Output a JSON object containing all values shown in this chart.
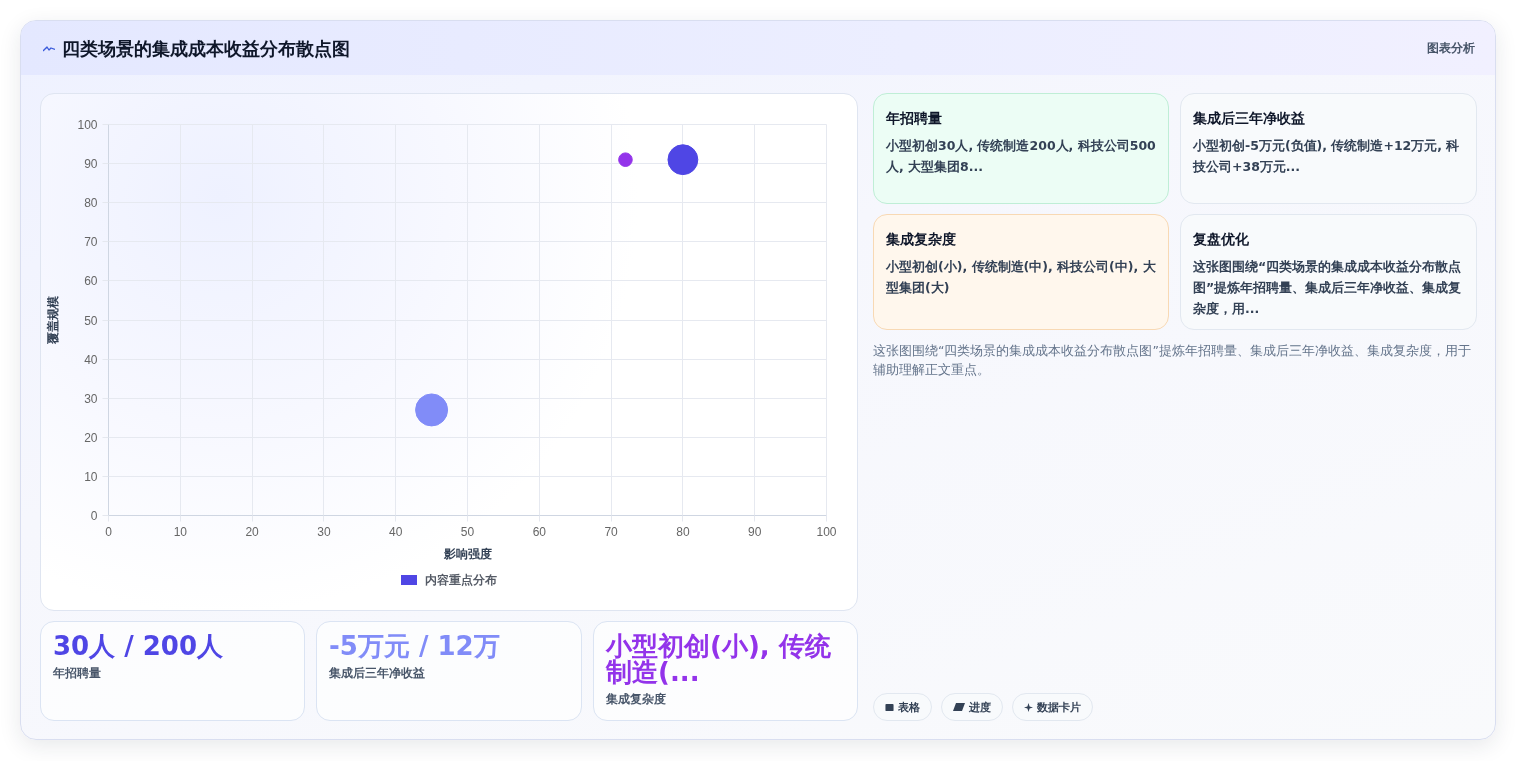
{
  "chart_data": [
    {
      "type": "bubble",
      "title": "四类场景的集成成本收益分布散点图",
      "xlabel": "影响强度",
      "ylabel": "覆盖规模",
      "annotations": [
        "图表分析"
      ],
      "x": [
        80,
        45,
        72
      ],
      "series": [
        {
          "name": "内容重点分布",
          "color": "#4f46e5",
          "colors": [
            "#4f46e5",
            "#818cf8",
            "#9333ea"
          ],
          "values": [
            91,
            27,
            91
          ],
          "sizes": [
            0.87,
            1,
            0.18
          ]
        }
      ],
      "xlim": [
        0,
        100
      ],
      "ylim": [
        0,
        100
      ],
      "xticks": [
        0,
        10,
        20,
        30,
        40,
        50,
        60,
        70,
        80,
        90,
        100
      ],
      "yticks": [
        0,
        10,
        20,
        30,
        40,
        50,
        60,
        70,
        80,
        90,
        100
      ],
      "grid": true,
      "legend": "bottom"
    },
    {
      "type": "other",
      "title": "30人 / 200人",
      "subtitle": "年招聘量"
    },
    {
      "type": "other",
      "title": "-5万元 / 12万",
      "subtitle": "集成后三年净收益"
    },
    {
      "type": "other",
      "title": "小型初创(小), 传统制造(...",
      "subtitle": "集成复杂度"
    },
    {
      "type": "other",
      "title": "年招聘量",
      "annotations": [
        "小型初创30人, 传统制造200人, 科技公司500人, 大型集团8..."
      ]
    },
    {
      "type": "other",
      "title": "集成后三年净收益",
      "annotations": [
        "小型初创-5万元(负值), 传统制造+12万元, 科技公司+38万元..."
      ]
    },
    {
      "type": "other",
      "title": "集成复杂度",
      "annotations": [
        "小型初创(小), 传统制造(中), 科技公司(中), 大型集团(大)"
      ]
    },
    {
      "type": "other",
      "title": "复盘优化",
      "annotations": [
        "这张图围绕“四类场景的集成成本收益分布散点图”提炼年招聘量、集成后三年净收益、集成复杂度，用..."
      ]
    },
    {
      "type": "other",
      "annotations": [
        "这张图围绕“四类场景的集成成本收益分布散点图”提炼年招聘量、集成后三年净收益、集成复杂度，用于辅助理解正文重点。"
      ]
    },
    {
      "type": "other",
      "annotations": [
        "表格",
        "进度",
        "数据卡片"
      ]
    }
  ]
}
